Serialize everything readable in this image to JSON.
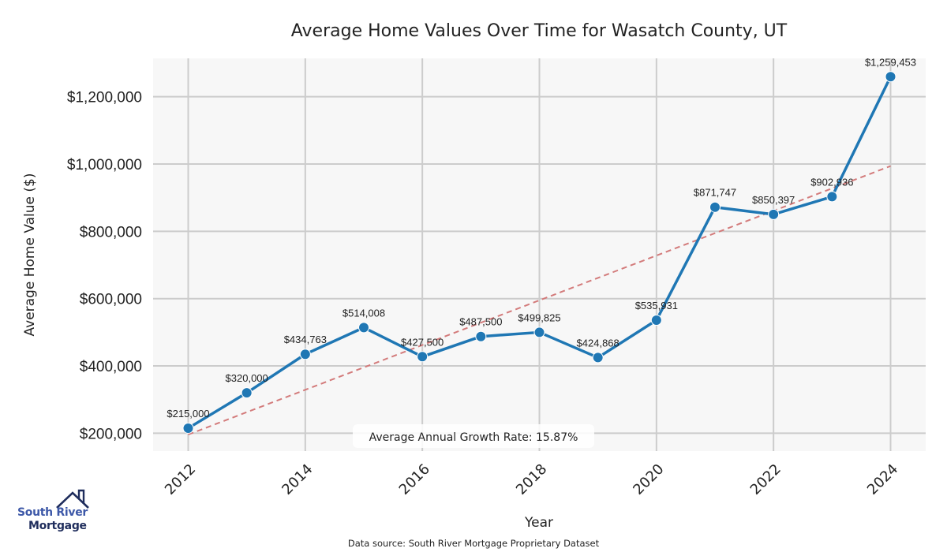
{
  "chart_data": {
    "type": "line",
    "title": "Average Home Values Over Time for Wasatch County, UT",
    "xlabel": "Year",
    "ylabel": "Average Home Value ($)",
    "x": [
      2012,
      2013,
      2014,
      2015,
      2016,
      2017,
      2018,
      2019,
      2020,
      2021,
      2022,
      2023,
      2024
    ],
    "series": [
      {
        "name": "Average Home Value",
        "color": "#1f77b4",
        "values": [
          215000,
          320000,
          434763,
          514008,
          427500,
          487500,
          499825,
          424868,
          535931,
          871747,
          850397,
          902936,
          1259453
        ],
        "labels": [
          "$215,000",
          "$320,000",
          "$434,763",
          "$514,008",
          "$427,500",
          "$487,500",
          "$499,825",
          "$424,868",
          "$535,931",
          "$871,747",
          "$850,397",
          "$902,936",
          "$1,259,453"
        ]
      },
      {
        "name": "Trend",
        "color": "#d37b7b",
        "style": "dashed",
        "x": [
          2012,
          2024
        ],
        "values": [
          196000,
          994000
        ]
      }
    ],
    "xticks": [
      2012,
      2014,
      2016,
      2018,
      2020,
      2022,
      2024
    ],
    "xtick_labels": [
      "2012",
      "2014",
      "2016",
      "2018",
      "2020",
      "2022",
      "2024"
    ],
    "yticks": [
      200000,
      400000,
      600000,
      800000,
      1000000,
      1200000
    ],
    "ytick_labels": [
      "$200,000",
      "$400,000",
      "$600,000",
      "$800,000",
      "$1,000,000",
      "$1,200,000"
    ],
    "xlim": [
      2011.4,
      2024.6
    ],
    "ylim": [
      147000,
      1314000
    ],
    "grid": true,
    "annotation": "Average Annual Growth Rate: 15.87%",
    "source": "Data source: South River Mortgage Proprietary Dataset"
  },
  "logo": {
    "line1": "South River",
    "line2": "Mortgage"
  }
}
